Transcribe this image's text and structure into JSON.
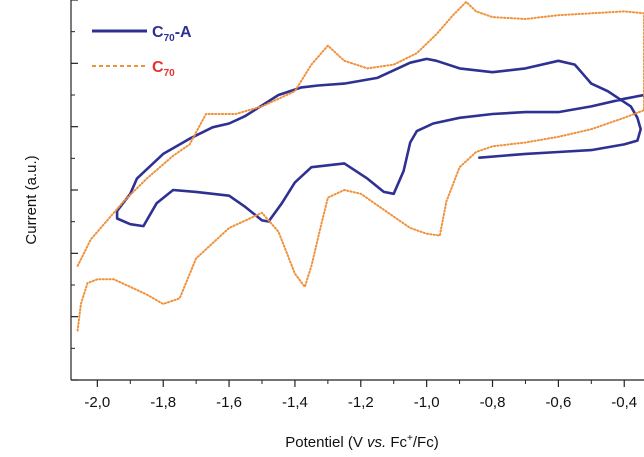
{
  "chart_data": {
    "type": "line",
    "xlabel_parts": [
      "Potentiel (V ",
      "vs.",
      " Fc",
      "+",
      "/Fc)"
    ],
    "ylabel": "Current (a.u.)",
    "xlim": [
      -2.08,
      -0.34
    ],
    "ylim": [
      0,
      1
    ],
    "x_ticks": [
      -2.0,
      -1.8,
      -1.6,
      -1.4,
      -1.2,
      -1.0,
      -0.8,
      -0.6,
      -0.4
    ],
    "x_tick_labels": [
      "-2,0",
      "-1,8",
      "-1,6",
      "-1,4",
      "-1,2",
      "-1,0",
      "-0,8",
      "-0,6",
      "-0,4"
    ],
    "y_tick_labels_shown": false,
    "legend_position": "top-left",
    "legend": [
      {
        "base": "C",
        "sub": "70",
        "suffix": "-A"
      },
      {
        "base": "C",
        "sub": "70",
        "suffix": ""
      }
    ],
    "series": [
      {
        "color": "#2e3192",
        "style": "solid",
        "x": [
          -0.84,
          -0.7,
          -0.6,
          -0.5,
          -0.4,
          -0.36,
          -0.35,
          -0.36,
          -0.38,
          -0.45,
          -0.5,
          -0.53,
          -0.55,
          -0.6,
          -0.7,
          -0.8,
          -0.9,
          -0.97,
          -1.0,
          -1.05,
          -1.15,
          -1.25,
          -1.33,
          -1.38,
          -1.45,
          -1.55,
          -1.6,
          -1.65,
          -1.72,
          -1.8,
          -1.88,
          -1.9,
          -1.94,
          -1.94,
          -1.9,
          -1.86,
          -1.82,
          -1.77,
          -1.7,
          -1.6,
          -1.55,
          -1.5,
          -1.48,
          -1.44,
          -1.4,
          -1.35,
          -1.25,
          -1.18,
          -1.13,
          -1.1,
          -1.07,
          -1.05,
          -1.03,
          -0.98,
          -0.9,
          -0.8,
          -0.7,
          -0.6,
          -0.5,
          -0.4,
          -0.34
        ],
        "y": [
          0.585,
          0.595,
          0.6,
          0.605,
          0.62,
          0.63,
          0.66,
          0.69,
          0.72,
          0.76,
          0.78,
          0.81,
          0.83,
          0.84,
          0.82,
          0.81,
          0.82,
          0.84,
          0.845,
          0.835,
          0.795,
          0.78,
          0.775,
          0.77,
          0.75,
          0.695,
          0.675,
          0.665,
          0.635,
          0.595,
          0.53,
          0.49,
          0.445,
          0.425,
          0.41,
          0.405,
          0.465,
          0.5,
          0.495,
          0.485,
          0.455,
          0.42,
          0.417,
          0.465,
          0.52,
          0.56,
          0.57,
          0.53,
          0.495,
          0.49,
          0.55,
          0.625,
          0.655,
          0.675,
          0.69,
          0.7,
          0.705,
          0.705,
          0.72,
          0.74,
          0.75
        ]
      },
      {
        "color": "#f0913c",
        "style": "dotted",
        "x": [
          -2.06,
          -2.05,
          -2.03,
          -2.0,
          -1.95,
          -1.9,
          -1.85,
          -1.8,
          -1.75,
          -1.7,
          -1.6,
          -1.5,
          -1.45,
          -1.4,
          -1.37,
          -1.35,
          -1.32,
          -1.3,
          -1.25,
          -1.2,
          -1.15,
          -1.1,
          -1.05,
          -1.0,
          -0.96,
          -0.94,
          -0.9,
          -0.85,
          -0.8,
          -0.7,
          -0.6,
          -0.5,
          -0.4,
          -0.34,
          -0.34,
          -0.4,
          -0.5,
          -0.6,
          -0.7,
          -0.8,
          -0.85,
          -0.88,
          -0.92,
          -0.97,
          -1.03,
          -1.1,
          -1.18,
          -1.25,
          -1.3,
          -1.35,
          -1.4,
          -1.5,
          -1.58,
          -1.62,
          -1.67,
          -1.72,
          -1.77,
          -1.85,
          -1.92,
          -1.97,
          -2.02,
          -2.06
        ],
        "y": [
          0.13,
          0.2,
          0.255,
          0.265,
          0.265,
          0.245,
          0.225,
          0.2,
          0.215,
          0.32,
          0.4,
          0.44,
          0.39,
          0.28,
          0.245,
          0.3,
          0.41,
          0.48,
          0.5,
          0.49,
          0.46,
          0.43,
          0.4,
          0.385,
          0.38,
          0.47,
          0.56,
          0.6,
          0.615,
          0.625,
          0.64,
          0.66,
          0.69,
          0.71,
          0.965,
          0.97,
          0.965,
          0.96,
          0.95,
          0.955,
          0.97,
          0.995,
          0.96,
          0.91,
          0.86,
          0.83,
          0.82,
          0.84,
          0.88,
          0.83,
          0.76,
          0.72,
          0.7,
          0.7,
          0.7,
          0.62,
          0.59,
          0.53,
          0.47,
          0.42,
          0.37,
          0.3
        ]
      }
    ]
  }
}
